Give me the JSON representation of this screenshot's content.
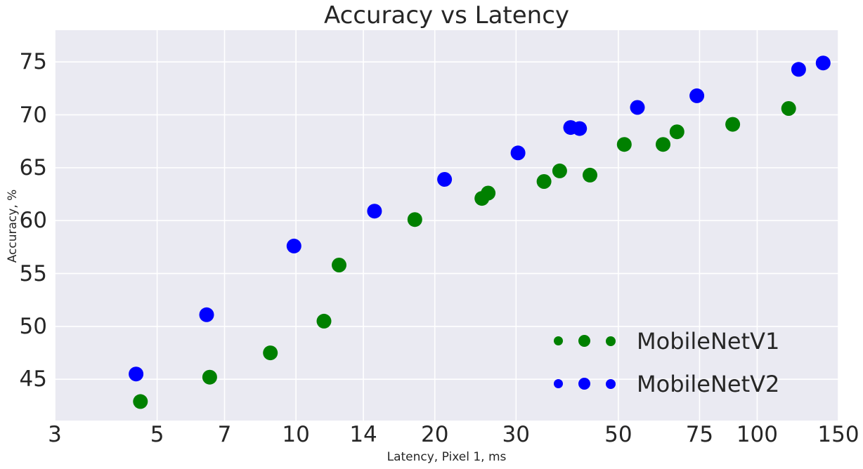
{
  "title": "Accuracy vs Latency",
  "chart_data": {
    "type": "scatter",
    "title": "Accuracy vs Latency",
    "xlabel": "Latency, Pixel 1, ms",
    "ylabel": "Accuracy, %",
    "x_scale": "log",
    "xlim": [
      3,
      150
    ],
    "ylim": [
      41.1,
      78.0
    ],
    "xticks": [
      3,
      5,
      7,
      10,
      14,
      20,
      30,
      50,
      75,
      100,
      150
    ],
    "yticks": [
      45,
      50,
      55,
      60,
      65,
      70,
      75
    ],
    "grid": true,
    "grid_color": "#ffffff",
    "plot_background": "#EAEAF2",
    "legend_position": "lower right",
    "marker_radius_px": 10.5,
    "series": [
      {
        "name": "MobileNetV1",
        "color": "#008000",
        "points": [
          [
            4.6,
            42.9
          ],
          [
            6.5,
            45.2
          ],
          [
            8.8,
            47.5
          ],
          [
            11.5,
            50.5
          ],
          [
            12.4,
            55.8
          ],
          [
            18.1,
            60.1
          ],
          [
            25.3,
            62.1
          ],
          [
            26.1,
            62.6
          ],
          [
            34.5,
            63.7
          ],
          [
            37.3,
            64.7
          ],
          [
            43.4,
            64.3
          ],
          [
            51.5,
            67.2
          ],
          [
            62.5,
            67.2
          ],
          [
            67.0,
            68.4
          ],
          [
            88.5,
            69.1
          ],
          [
            117.0,
            70.6
          ]
        ]
      },
      {
        "name": "MobileNetV2",
        "color": "#0000FF",
        "points": [
          [
            4.5,
            45.5
          ],
          [
            6.4,
            51.1
          ],
          [
            9.9,
            57.6
          ],
          [
            14.8,
            60.9
          ],
          [
            21.0,
            63.9
          ],
          [
            30.3,
            66.4
          ],
          [
            39.4,
            68.8
          ],
          [
            41.2,
            68.7
          ],
          [
            55.0,
            70.7
          ],
          [
            74.0,
            71.8
          ],
          [
            123.0,
            74.3
          ],
          [
            139.0,
            74.9
          ]
        ]
      }
    ]
  }
}
